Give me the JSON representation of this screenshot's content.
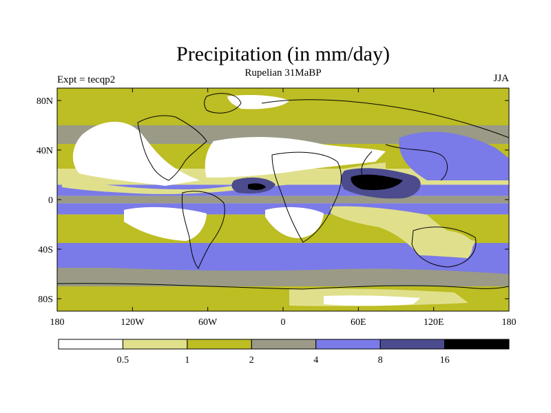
{
  "figure": {
    "title": "Precipitation (in mm/day)",
    "subtitle": "Rupelian  31MaBP",
    "left_label": "Expt = tecqp2",
    "right_label": "JJA"
  },
  "axes": {
    "x_ticks": [
      "180",
      "120W",
      "60W",
      "0",
      "60E",
      "120E",
      "180"
    ],
    "x_values": [
      -180,
      -120,
      -60,
      0,
      60,
      120,
      180
    ],
    "y_ticks": [
      "80N",
      "40N",
      "0",
      "40S",
      "80S"
    ],
    "y_values": [
      80,
      40,
      0,
      -40,
      -80
    ],
    "lon_range": [
      -180,
      180
    ],
    "lat_range": [
      -90,
      90
    ]
  },
  "colorbar": {
    "colors": [
      "#ffffff",
      "#e0e08c",
      "#bdbd24",
      "#9a9a86",
      "#7a7ae8",
      "#4b4b8e",
      "#000000"
    ],
    "labels": [
      "0.5",
      "1",
      "2",
      "4",
      "8",
      "16"
    ]
  },
  "map_fields": {
    "bands": [
      {
        "lat": [
          60,
          90
        ],
        "color": "#bdbd24"
      },
      {
        "lat": [
          45,
          60
        ],
        "color": "#9a9a86"
      },
      {
        "lat": [
          25,
          45
        ],
        "color": "#bdbd24"
      },
      {
        "lat": [
          12,
          25
        ],
        "color": "#e0e08c"
      },
      {
        "lat": [
          3,
          12
        ],
        "color": "#7a7ae8"
      },
      {
        "lat": [
          -3,
          3
        ],
        "color": "#9a9a86"
      },
      {
        "lat": [
          -12,
          -3
        ],
        "color": "#7a7ae8"
      },
      {
        "lat": [
          -35,
          -12
        ],
        "color": "#bdbd24"
      },
      {
        "lat": [
          -55,
          -35
        ],
        "color": "#7a7ae8"
      },
      {
        "lat": [
          -70,
          -55
        ],
        "color": "#9a9a86"
      },
      {
        "lat": [
          -90,
          -70
        ],
        "color": "#bdbd24"
      }
    ]
  }
}
